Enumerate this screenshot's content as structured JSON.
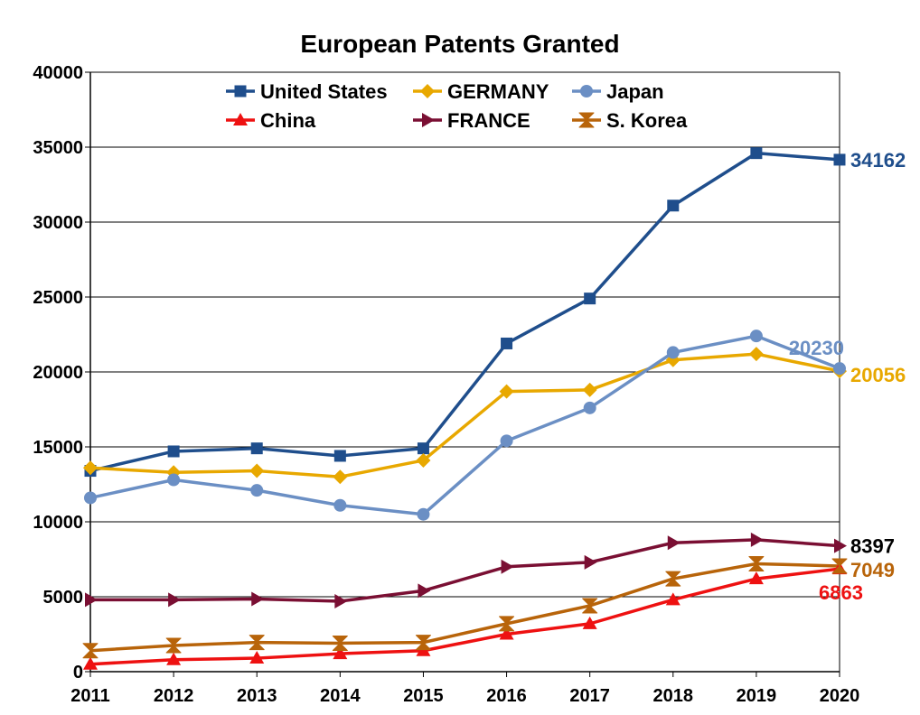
{
  "chart_data": {
    "type": "line",
    "title": "European Patents Granted",
    "xlabel": "",
    "ylabel": "",
    "x": [
      "2011",
      "2012",
      "2013",
      "2014",
      "2015",
      "2016",
      "2017",
      "2018",
      "2019",
      "2020"
    ],
    "ylim": [
      0,
      40000
    ],
    "yticks": [
      0,
      5000,
      10000,
      15000,
      20000,
      25000,
      30000,
      35000,
      40000
    ],
    "grid": "horizontal",
    "legend": "top",
    "series": [
      {
        "name": "United States",
        "color": "#1f4e8c",
        "marker": "square",
        "values": [
          13400,
          14700,
          14900,
          14400,
          14900,
          21900,
          24900,
          31100,
          34600,
          34162
        ],
        "end_label": "34162"
      },
      {
        "name": "GERMANY",
        "color": "#e8a800",
        "marker": "diamond",
        "values": [
          13600,
          13300,
          13400,
          13000,
          14100,
          18700,
          18800,
          20800,
          21200,
          20056
        ],
        "end_label": "20056"
      },
      {
        "name": "Japan",
        "color": "#6b8fc4",
        "marker": "circle",
        "values": [
          11600,
          12800,
          12100,
          11100,
          10500,
          15400,
          17600,
          21300,
          22400,
          20230
        ],
        "end_label": "20230"
      },
      {
        "name": "China",
        "color": "#ee1111",
        "marker": "triangle",
        "values": [
          500,
          800,
          900,
          1200,
          1400,
          2500,
          3200,
          4800,
          6200,
          6863
        ],
        "end_label": "6863"
      },
      {
        "name": "FRANCE",
        "color": "#7a0f33",
        "marker": "triangle-right",
        "values": [
          4800,
          4800,
          4850,
          4700,
          5400,
          7000,
          7300,
          8600,
          8800,
          8397
        ],
        "end_label": "8397",
        "end_label_color": "#000000"
      },
      {
        "name": "S. Korea",
        "color": "#b8640a",
        "marker": "hourglass",
        "values": [
          1400,
          1750,
          1950,
          1900,
          1950,
          3200,
          4400,
          6200,
          7200,
          7049
        ],
        "end_label": "7049"
      }
    ]
  }
}
